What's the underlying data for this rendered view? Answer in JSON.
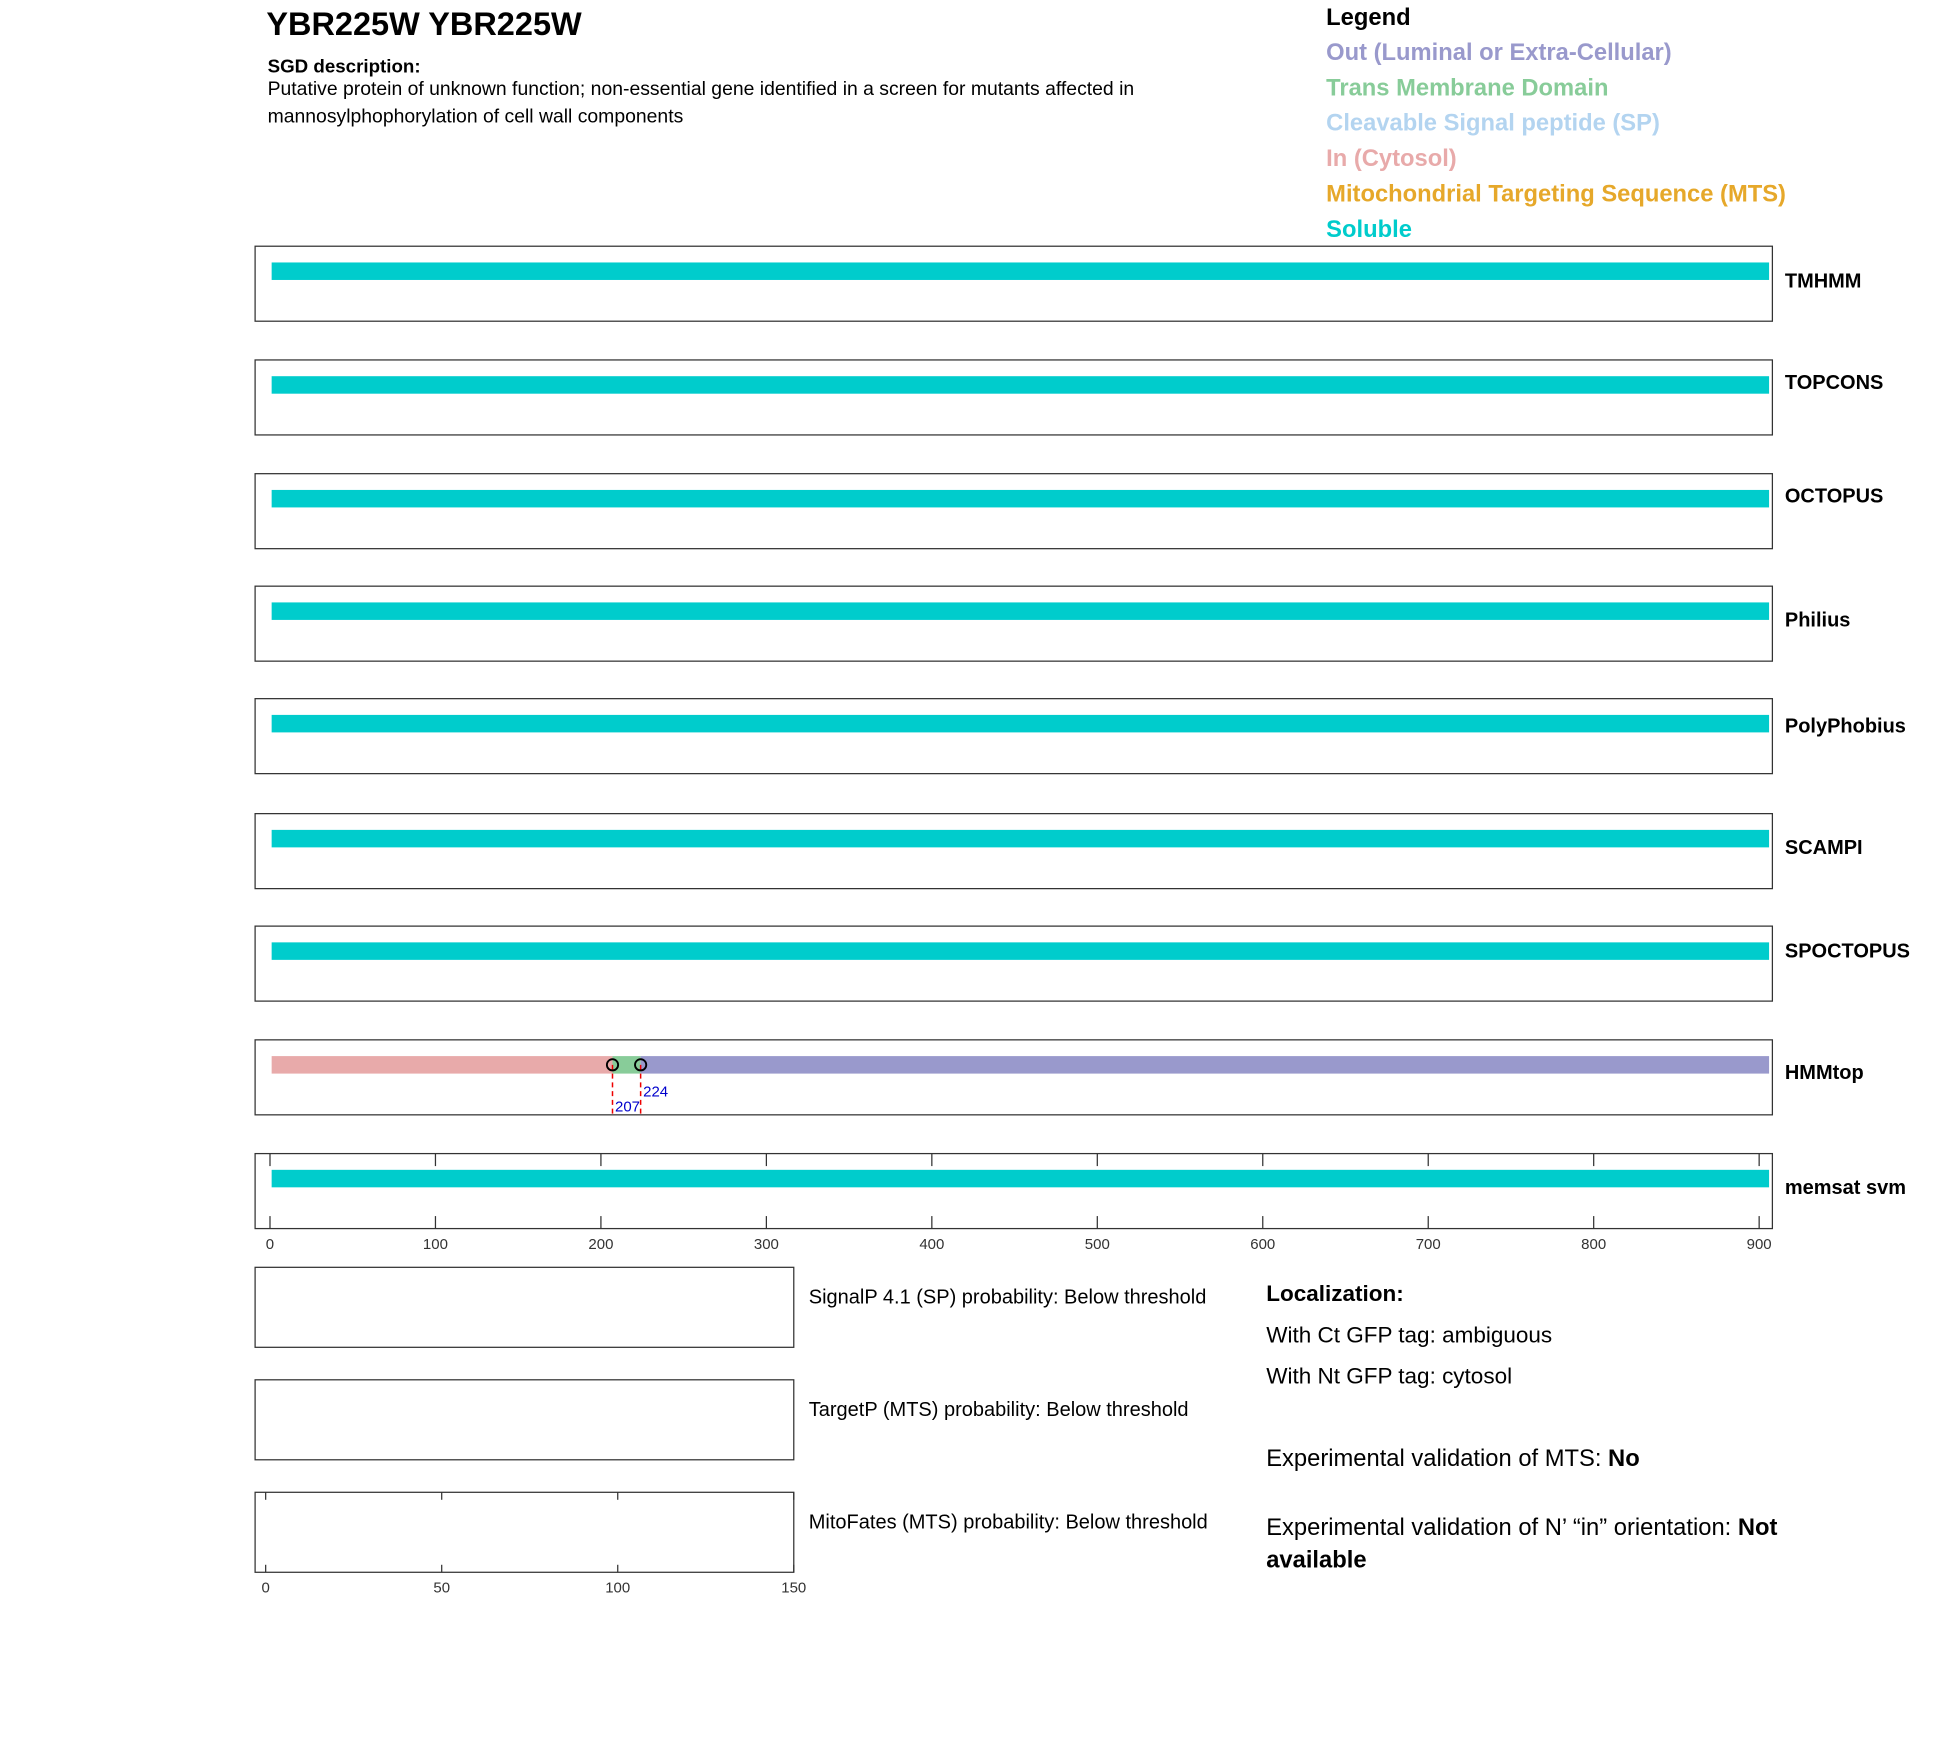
{
  "header": {
    "title": "YBR225W  YBR225W",
    "description_label": "SGD description:",
    "description": "Putative protein of unknown function; non-essential gene identified in a screen for mutants affected in mannosylphophorylation of cell wall components"
  },
  "legend": {
    "title": "Legend",
    "items": [
      {
        "label": "Out (Luminal or Extra-Cellular)",
        "color": "#9999cc"
      },
      {
        "label": "Trans Membrane Domain",
        "color": "#88cc99"
      },
      {
        "label": "Cleavable Signal peptide (SP)",
        "color": "#b3d4f0"
      },
      {
        "label": "In (Cytosol)",
        "color": "#e8aaaa"
      },
      {
        "label": "Mitochondrial Targeting Sequence (MTS)",
        "color": "#e6a82a"
      },
      {
        "label": "Soluble",
        "color": "#00cccc"
      }
    ]
  },
  "chart_data": [
    {
      "type": "topology",
      "xlim": [
        -9,
        908
      ],
      "xticks": [
        0,
        100,
        200,
        300,
        400,
        500,
        600,
        700,
        800,
        900
      ],
      "tracks": [
        {
          "name": "TMHMM",
          "segments": [
            {
              "start": 1,
              "end": 906,
              "color": "#00cccc"
            }
          ]
        },
        {
          "name": "TOPCONS",
          "segments": [
            {
              "start": 1,
              "end": 906,
              "color": "#00cccc"
            }
          ]
        },
        {
          "name": "OCTOPUS",
          "segments": [
            {
              "start": 1,
              "end": 906,
              "color": "#00cccc"
            }
          ]
        },
        {
          "name": "Philius",
          "segments": [
            {
              "start": 1,
              "end": 906,
              "color": "#00cccc"
            }
          ]
        },
        {
          "name": "PolyPhobius",
          "segments": [
            {
              "start": 1,
              "end": 906,
              "color": "#00cccc"
            }
          ]
        },
        {
          "name": "SCAMPI",
          "segments": [
            {
              "start": 1,
              "end": 906,
              "color": "#00cccc"
            }
          ]
        },
        {
          "name": "SPOCTOPUS",
          "segments": [
            {
              "start": 1,
              "end": 906,
              "color": "#00cccc"
            }
          ]
        },
        {
          "name": "HMMtop",
          "segments": [
            {
              "start": 1,
              "end": 207,
              "color": "#e8aaaa"
            },
            {
              "start": 207,
              "end": 224,
              "color": "#88cc99"
            },
            {
              "start": 224,
              "end": 906,
              "color": "#9999cc"
            }
          ],
          "markers": [
            207,
            224
          ]
        },
        {
          "name": "memsat svm",
          "segments": [
            {
              "start": 1,
              "end": 906,
              "color": "#00cccc"
            }
          ]
        }
      ]
    },
    {
      "type": "probability-panels",
      "xlim": [
        -3,
        150
      ],
      "xticks": [
        0,
        50,
        100,
        150
      ],
      "panels": [
        "SignalP 4.1 (SP) probability: Below threshold",
        "TargetP (MTS) probability: Below threshold",
        "MitoFates (MTS) probability: Below threshold"
      ]
    }
  ],
  "localization": {
    "title": "Localization:",
    "lines": [
      "With Ct GFP tag: ambiguous",
      "With Nt GFP tag: cytosol"
    ],
    "validations": [
      {
        "label": "Experimental validation of MTS:",
        "value": "No"
      },
      {
        "label": "Experimental validation of N’ “in” orientation:",
        "value": "Not available"
      }
    ]
  }
}
